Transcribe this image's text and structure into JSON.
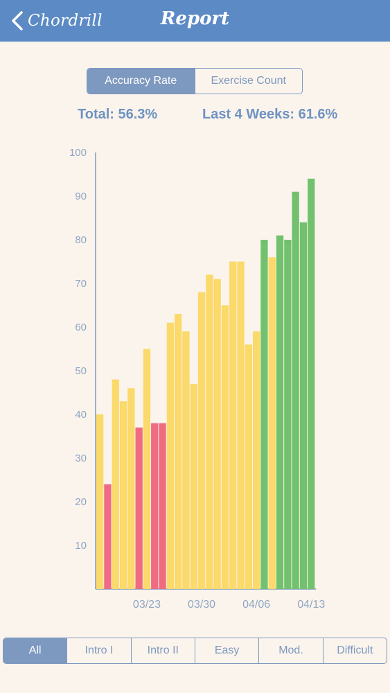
{
  "navbar": {
    "back_label": "Chordrill",
    "title": "Report",
    "background": "#5b8ac4"
  },
  "metric_tabs": [
    {
      "label": "Accuracy Rate",
      "selected": true
    },
    {
      "label": "Exercise Count",
      "selected": false
    }
  ],
  "stats": {
    "total": "Total: 56.3%",
    "last_4_weeks": "Last 4 Weeks: 61.6%"
  },
  "filters": [
    {
      "label": "All",
      "selected": true
    },
    {
      "label": "Intro I",
      "selected": false
    },
    {
      "label": "Intro II",
      "selected": false
    },
    {
      "label": "Easy",
      "selected": false
    },
    {
      "label": "Mod.",
      "selected": false
    },
    {
      "label": "Difficult",
      "selected": false
    }
  ],
  "colors": {
    "accent": "#7d99c0",
    "low": "#ef6b81",
    "mid": "#fbd96a",
    "high": "#72c16e"
  },
  "chart_data": {
    "type": "bar",
    "title": "",
    "xlabel": "",
    "ylabel": "",
    "ylim": [
      0,
      100
    ],
    "yticks": [
      10,
      20,
      30,
      40,
      50,
      60,
      70,
      80,
      90,
      100
    ],
    "xtick_labels": [
      {
        "label": "03/23",
        "index": 6
      },
      {
        "label": "03/30",
        "index": 13
      },
      {
        "label": "04/06",
        "index": 20
      },
      {
        "label": "04/13",
        "index": 27
      }
    ],
    "values": [
      40,
      24,
      48,
      43,
      46,
      37,
      55,
      38,
      38,
      61,
      63,
      59,
      47,
      68,
      72,
      71,
      65,
      75,
      75,
      56,
      59,
      80,
      76,
      81,
      80,
      91,
      84,
      94
    ],
    "bar_levels": [
      "mid",
      "low",
      "mid",
      "mid",
      "mid",
      "low",
      "mid",
      "low",
      "low",
      "mid",
      "mid",
      "mid",
      "mid",
      "mid",
      "mid",
      "mid",
      "mid",
      "mid",
      "mid",
      "mid",
      "mid",
      "high",
      "mid",
      "high",
      "high",
      "high",
      "high",
      "high"
    ]
  }
}
